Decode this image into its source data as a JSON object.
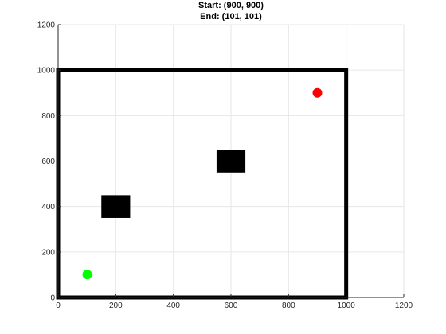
{
  "chart_data": {
    "type": "scatter",
    "title_lines": [
      "Start: (900, 900)",
      "End: (101, 101)"
    ],
    "xlabel": "",
    "ylabel": "",
    "xlim": [
      0,
      1200
    ],
    "ylim": [
      0,
      1200
    ],
    "xticks": [
      0,
      200,
      400,
      600,
      800,
      1000,
      1200
    ],
    "yticks": [
      0,
      200,
      400,
      600,
      800,
      1000,
      1200
    ],
    "grid": true,
    "boundary": {
      "x": [
        0,
        1000
      ],
      "y": [
        0,
        1000
      ],
      "color": "#000000"
    },
    "obstacles": [
      {
        "x": [
          150,
          250
        ],
        "y": [
          350,
          450
        ],
        "color": "#000000"
      },
      {
        "x": [
          550,
          650
        ],
        "y": [
          550,
          650
        ],
        "color": "#000000"
      }
    ],
    "points": [
      {
        "x": 900,
        "y": 900,
        "color": "#ff0000"
      },
      {
        "x": 101,
        "y": 101,
        "color": "#00ff00"
      }
    ]
  }
}
